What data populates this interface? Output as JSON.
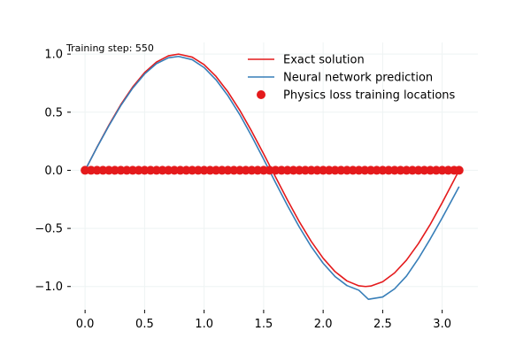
{
  "chart_data": {
    "type": "line",
    "annotation": "Training step: 550",
    "xlim": [
      -0.12,
      3.3
    ],
    "ylim": [
      -1.2,
      1.1
    ],
    "grid": true,
    "legend_position": "top-right",
    "x_ticks": [
      {
        "value": 0.0,
        "label": "0.0"
      },
      {
        "value": 0.5,
        "label": "0.5"
      },
      {
        "value": 1.0,
        "label": "1.0"
      },
      {
        "value": 1.5,
        "label": "1.5"
      },
      {
        "value": 2.0,
        "label": "2.0"
      },
      {
        "value": 2.5,
        "label": "2.5"
      },
      {
        "value": 3.0,
        "label": "3.0"
      }
    ],
    "y_ticks": [
      {
        "value": 1.0,
        "label": "1.0"
      },
      {
        "value": 0.5,
        "label": "0.5"
      },
      {
        "value": 0.0,
        "label": "0.0"
      },
      {
        "value": -0.5,
        "label": "−0.5"
      },
      {
        "value": -1.0,
        "label": "−1.0"
      }
    ],
    "series": [
      {
        "name": "Exact solution",
        "kind": "line",
        "color": "#e41a1c",
        "x": [
          0.0,
          0.1,
          0.2,
          0.3,
          0.4,
          0.5,
          0.6,
          0.7,
          0.785,
          0.9,
          1.0,
          1.1,
          1.2,
          1.3,
          1.4,
          1.5,
          1.571,
          1.6,
          1.7,
          1.8,
          1.9,
          2.0,
          2.1,
          2.2,
          2.3,
          2.356,
          2.4,
          2.5,
          2.6,
          2.7,
          2.8,
          2.9,
          3.0,
          3.1,
          3.142
        ],
        "y": [
          0.0,
          0.199,
          0.389,
          0.565,
          0.717,
          0.841,
          0.932,
          0.985,
          1.0,
          0.974,
          0.909,
          0.808,
          0.675,
          0.516,
          0.335,
          0.141,
          0.0,
          -0.058,
          -0.256,
          -0.443,
          -0.612,
          -0.757,
          -0.872,
          -0.952,
          -0.994,
          -1.0,
          -0.996,
          -0.959,
          -0.883,
          -0.773,
          -0.631,
          -0.465,
          -0.279,
          -0.083,
          0.0
        ]
      },
      {
        "name": "Neural network prediction",
        "kind": "line",
        "color": "#377eb8",
        "x": [
          0.0,
          0.1,
          0.2,
          0.3,
          0.4,
          0.5,
          0.6,
          0.7,
          0.785,
          0.9,
          1.0,
          1.1,
          1.2,
          1.3,
          1.4,
          1.5,
          1.6,
          1.7,
          1.8,
          1.9,
          2.0,
          2.1,
          2.2,
          2.3,
          2.38,
          2.5,
          2.6,
          2.7,
          2.8,
          2.9,
          3.0,
          3.1,
          3.142
        ],
        "y": [
          0.0,
          0.197,
          0.383,
          0.557,
          0.707,
          0.829,
          0.918,
          0.968,
          0.98,
          0.952,
          0.884,
          0.779,
          0.642,
          0.478,
          0.293,
          0.096,
          -0.106,
          -0.303,
          -0.489,
          -0.657,
          -0.8,
          -0.914,
          -0.992,
          -1.032,
          -1.11,
          -1.09,
          -1.02,
          -0.91,
          -0.76,
          -0.59,
          -0.41,
          -0.22,
          -0.14
        ]
      },
      {
        "name": "Physics loss training locations",
        "kind": "scatter",
        "color": "#e41a1c",
        "x": [
          0.0,
          0.05,
          0.1,
          0.15,
          0.2,
          0.25,
          0.3,
          0.35,
          0.4,
          0.45,
          0.5,
          0.55,
          0.6,
          0.65,
          0.7,
          0.75,
          0.8,
          0.85,
          0.9,
          0.95,
          1.0,
          1.05,
          1.1,
          1.15,
          1.2,
          1.25,
          1.3,
          1.35,
          1.4,
          1.45,
          1.5,
          1.55,
          1.6,
          1.65,
          1.7,
          1.75,
          1.8,
          1.85,
          1.9,
          1.95,
          2.0,
          2.05,
          2.1,
          2.15,
          2.2,
          2.25,
          2.3,
          2.35,
          2.4,
          2.45,
          2.5,
          2.55,
          2.6,
          2.65,
          2.7,
          2.75,
          2.8,
          2.85,
          2.9,
          2.95,
          3.0,
          3.05,
          3.1,
          3.142
        ],
        "y": [
          0.0,
          0.0,
          0.0,
          0.0,
          0.0,
          0.0,
          0.0,
          0.0,
          0.0,
          0.0,
          0.0,
          0.0,
          0.0,
          0.0,
          0.0,
          0.0,
          0.0,
          0.0,
          0.0,
          0.0,
          0.0,
          0.0,
          0.0,
          0.0,
          0.0,
          0.0,
          0.0,
          0.0,
          0.0,
          0.0,
          0.0,
          0.0,
          0.0,
          0.0,
          0.0,
          0.0,
          0.0,
          0.0,
          0.0,
          0.0,
          0.0,
          0.0,
          0.0,
          0.0,
          0.0,
          0.0,
          0.0,
          0.0,
          0.0,
          0.0,
          0.0,
          0.0,
          0.0,
          0.0,
          0.0,
          0.0,
          0.0,
          0.0,
          0.0,
          0.0,
          0.0,
          0.0,
          0.0,
          0.0
        ]
      }
    ]
  }
}
